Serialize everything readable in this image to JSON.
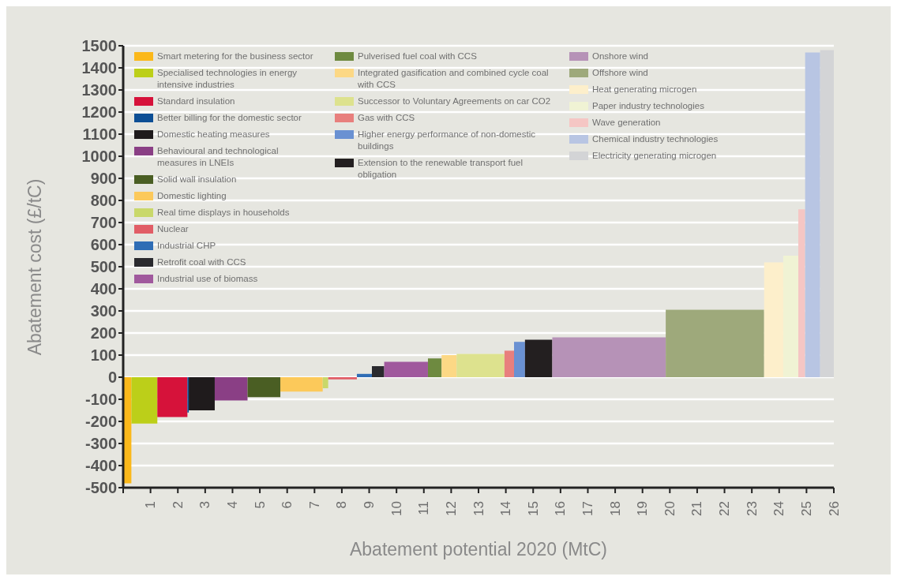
{
  "chart_data": {
    "type": "area",
    "xlabel": "Abatement potential 2020 (MtC)",
    "ylabel": "Abatement cost (£/tC)",
    "xlim": [
      0,
      26
    ],
    "xticks": [
      {
        "value": 0,
        "label": null
      },
      1,
      2,
      3,
      4,
      5,
      6,
      7,
      8,
      9,
      10,
      11,
      12,
      13,
      14,
      15,
      16,
      17,
      18,
      19,
      20,
      21,
      22,
      23,
      24,
      25,
      26
    ],
    "ylim": [
      -500,
      1500
    ],
    "yticks": [
      -500,
      -400,
      -300,
      -200,
      -100,
      0,
      100,
      200,
      300,
      400,
      500,
      600,
      700,
      800,
      900,
      1000,
      1100,
      1200,
      1300,
      1400,
      1500
    ],
    "grid": "y",
    "legend": "top",
    "series": [
      {
        "name": "Smart metering for the business sector",
        "color": "#fbb81a",
        "x": [
          0,
          0.3
        ],
        "values": [
          -480,
          -480
        ]
      },
      {
        "name": "Specialised technologies in energy intensive industries",
        "color": "#bccf19",
        "x": [
          0.3,
          1.25
        ],
        "values": [
          -210,
          -210
        ]
      },
      {
        "name": "Standard insulation",
        "color": "#d6123a",
        "x": [
          1.25,
          2.35
        ],
        "values": [
          -180,
          -180
        ]
      },
      {
        "name": "Better billing for the domestic sector",
        "color": "#0d4f95",
        "x": [
          2.35,
          2.4
        ],
        "values": [
          -160,
          -160
        ]
      },
      {
        "name": "Domestic heating measures",
        "color": "#1f1b1c",
        "x": [
          2.4,
          3.35
        ],
        "values": [
          -150,
          -150
        ]
      },
      {
        "name": "Behavioural and technological measures in LNEIs",
        "color": "#8a3f85",
        "x": [
          3.35,
          4.55
        ],
        "values": [
          -105,
          -105
        ]
      },
      {
        "name": "Solid wall insulation",
        "color": "#4a5e23",
        "x": [
          4.55,
          5.75
        ],
        "values": [
          -90,
          -90
        ]
      },
      {
        "name": "Domestic lighting",
        "color": "#fcc95a",
        "x": [
          5.75,
          7.3
        ],
        "values": [
          -65,
          -65
        ]
      },
      {
        "name": "Real time displays in households",
        "color": "#c9d86a",
        "x": [
          7.3,
          7.5
        ],
        "values": [
          -50,
          -50
        ]
      },
      {
        "name": "Nuclear",
        "color": "#e15d66",
        "x": [
          7.5,
          8.55
        ],
        "values": [
          -10,
          -10
        ]
      },
      {
        "name": "Industrial CHP",
        "color": "#2f6db5",
        "x": [
          8.55,
          9.1
        ],
        "values": [
          15,
          15
        ]
      },
      {
        "name": "Retrofit coal with CCS",
        "color": "#2a2a2e",
        "x": [
          9.1,
          9.55
        ],
        "values": [
          50,
          50
        ]
      },
      {
        "name": "Industrial use of biomass",
        "color": "#a0599d",
        "x": [
          9.55,
          11.15
        ],
        "values": [
          70,
          70
        ]
      },
      {
        "name": "Pulverised fuel coal with CCS",
        "color": "#6e8a40",
        "x": [
          11.15,
          11.65
        ],
        "values": [
          85,
          85
        ]
      },
      {
        "name": "Integrated gasification and combined cycle coal with CCS",
        "color": "#fcd885",
        "x": [
          11.65,
          12.2
        ],
        "values": [
          100,
          100
        ]
      },
      {
        "name": "Successor to Voluntary Agreements on car CO2",
        "color": "#dde28e",
        "x": [
          12.2,
          13.95
        ],
        "values": [
          105,
          105
        ]
      },
      {
        "name": "Gas with CCS",
        "color": "#e87f7d",
        "x": [
          13.95,
          14.3
        ],
        "values": [
          120,
          120
        ]
      },
      {
        "name": "Higher energy performance of non-domestic buildings",
        "color": "#6a91d2",
        "x": [
          14.3,
          14.7
        ],
        "values": [
          160,
          160
        ]
      },
      {
        "name": "Extension to the renewable transport fuel obligation",
        "color": "#231f20",
        "x": [
          14.7,
          15.7
        ],
        "values": [
          170,
          170
        ]
      },
      {
        "name": "Onshore wind",
        "color": "#b692b7",
        "x": [
          15.7,
          19.85
        ],
        "values": [
          180,
          180
        ]
      },
      {
        "name": "Offshore wind",
        "color": "#9ea97b",
        "x": [
          19.85,
          23.45
        ],
        "values": [
          305,
          305
        ]
      },
      {
        "name": "Heat generating microgen",
        "color": "#fdefcb",
        "x": [
          23.45,
          24.15
        ],
        "values": [
          520,
          520
        ]
      },
      {
        "name": "Paper industry technologies",
        "color": "#f0f3d4",
        "x": [
          24.15,
          24.7
        ],
        "values": [
          550,
          550
        ]
      },
      {
        "name": "Wave generation",
        "color": "#f5c6c4",
        "x": [
          24.7,
          24.95
        ],
        "values": [
          760,
          760
        ]
      },
      {
        "name": "Chemical industry technologies",
        "color": "#b8c5e3",
        "x": [
          24.95,
          25.5
        ],
        "values": [
          1470,
          1470
        ]
      },
      {
        "name": "Electricity generating microgen",
        "color": "#d3d4d6",
        "x": [
          25.5,
          26
        ],
        "values": [
          1480,
          1480
        ]
      }
    ]
  }
}
